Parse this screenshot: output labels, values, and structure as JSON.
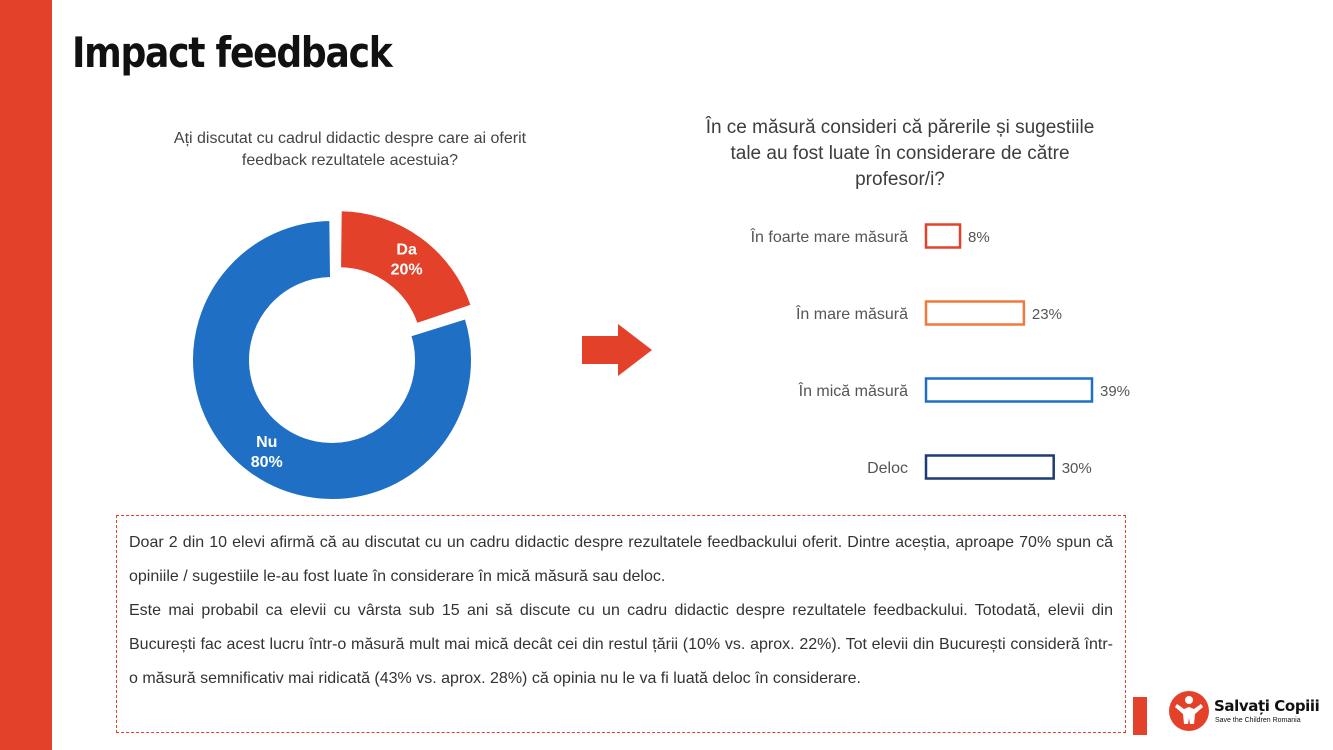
{
  "page": {
    "title": "Impact feedback",
    "summary": [
      "Doar 2 din 10 elevi afirmă că au discutat cu un cadru didactic despre rezultatele feedbackului oferit. Dintre aceștia, aproape 70% spun că opiniile / sugestiile le-au fost luate în considerare în mică măsură sau deloc.",
      "Este mai probabil ca elevii cu vârsta sub 15 ani să discute cu un cadru didactic despre rezultatele feedbackului. Totodată, elevii din București fac acest lucru într-o măsură mult mai mică decât cei din restul țării (10% vs. aprox. 22%). Tot elevii din București consideră într-o măsură semnificativ mai ridicată (43% vs. aprox. 28%) că opinia nu le va fi luată deloc în considerare."
    ],
    "logo": {
      "name": "Salvați Copiii",
      "tagline": "Save the Children Romania"
    },
    "colors": {
      "accent": "#e4412b",
      "blue": "#1f6fc5",
      "navy": "#1f3a7a",
      "orange": "#f07a3e"
    },
    "icons": [
      "right-arrow-icon",
      "child-logo-icon"
    ]
  },
  "chart_data": [
    {
      "type": "pie",
      "variant": "donut",
      "title": "Ați discutat cu cadrul didactic despre care ai oferit feedback rezultatele acestuia?",
      "slices": [
        {
          "label": "Da",
          "value": 20,
          "display": "20%",
          "color": "#e4412b",
          "exploded": true
        },
        {
          "label": "Nu",
          "value": 80,
          "display": "80%",
          "color": "#1f6fc5",
          "exploded": false
        }
      ]
    },
    {
      "type": "bar",
      "orientation": "horizontal",
      "title": "În ce măsură consideri că părerile și sugestiile tale au fost luate în considerare de către profesor/i?",
      "categories": [
        "În foarte mare măsură",
        "În mare măsură",
        "În mică măsură",
        "Deloc"
      ],
      "values": [
        8,
        23,
        39,
        30
      ],
      "value_labels": [
        "8%",
        "23%",
        "39%",
        "30%"
      ],
      "colors": [
        "#e4412b",
        "#f07a3e",
        "#1f6fc5",
        "#1f3a7a"
      ],
      "fill": "outline",
      "xlim": [
        0,
        39
      ]
    }
  ]
}
